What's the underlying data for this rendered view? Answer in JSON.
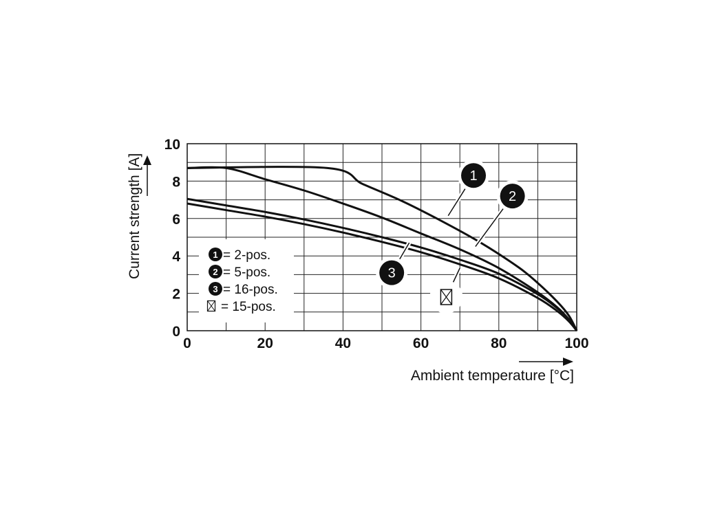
{
  "chart_data": {
    "type": "line",
    "xlabel": "Ambient temperature [°C]",
    "ylabel": "Current strength [A]",
    "xlim": [
      0,
      100
    ],
    "ylim": [
      0,
      10
    ],
    "x_ticks": [
      "0",
      "20",
      "40",
      "60",
      "80",
      "100"
    ],
    "y_ticks": [
      "0",
      "2",
      "4",
      "6",
      "8",
      "10"
    ],
    "x_grid_step": 10,
    "y_grid_step": 1,
    "grid": true,
    "legend_position": "bottom-left",
    "series": [
      {
        "id": "1",
        "name": "= 2-pos.",
        "marker": "filled-circle-number",
        "x": [
          0,
          36,
          45,
          55,
          65,
          75,
          85,
          90,
          95,
          98,
          100
        ],
        "y": [
          8.7,
          8.7,
          7.85,
          6.95,
          5.9,
          4.75,
          3.4,
          2.55,
          1.55,
          0.8,
          0
        ]
      },
      {
        "id": "2",
        "name": "= 5-pos.",
        "marker": "filled-circle-number",
        "x": [
          0,
          10,
          20,
          30,
          40,
          50,
          60,
          70,
          80,
          90,
          95,
          98,
          100
        ],
        "y": [
          8.7,
          8.7,
          8.1,
          7.5,
          6.8,
          6.05,
          5.2,
          4.35,
          3.35,
          2.05,
          1.25,
          0.6,
          0
        ]
      },
      {
        "id": "3",
        "name": "= 16-pos.",
        "marker": "filled-circle-number",
        "x": [
          0,
          10,
          20,
          30,
          40,
          50,
          60,
          70,
          80,
          90,
          95,
          98,
          100
        ],
        "y": [
          7.05,
          6.7,
          6.35,
          5.95,
          5.5,
          5.0,
          4.45,
          3.8,
          3.05,
          1.95,
          1.2,
          0.6,
          0
        ]
      },
      {
        "id": "crossed-box",
        "name": "= 15-pos.",
        "marker": "crossed-box",
        "x": [
          0,
          10,
          20,
          30,
          40,
          50,
          60,
          70,
          80,
          90,
          95,
          98,
          100
        ],
        "y": [
          6.8,
          6.45,
          6.1,
          5.7,
          5.25,
          4.75,
          4.2,
          3.55,
          2.8,
          1.75,
          1.05,
          0.5,
          0
        ]
      }
    ],
    "annotations": [
      {
        "label": "1",
        "type": "filled-circle-number",
        "pointer_x": 67,
        "pointer_y": 6.15,
        "label_x": 73.5,
        "label_y": 8.3
      },
      {
        "label": "2",
        "type": "filled-circle-number",
        "pointer_x": 74,
        "pointer_y": 4.5,
        "label_x": 83.5,
        "label_y": 7.2
      },
      {
        "label": "3",
        "type": "filled-circle-number",
        "pointer_x": 57,
        "pointer_y": 4.7,
        "label_x": 52.5,
        "label_y": 3.1
      },
      {
        "label": "",
        "type": "crossed-box",
        "pointer_x": 70,
        "pointer_y": 3.35,
        "label_x": 66.5,
        "label_y": 1.8
      }
    ]
  }
}
